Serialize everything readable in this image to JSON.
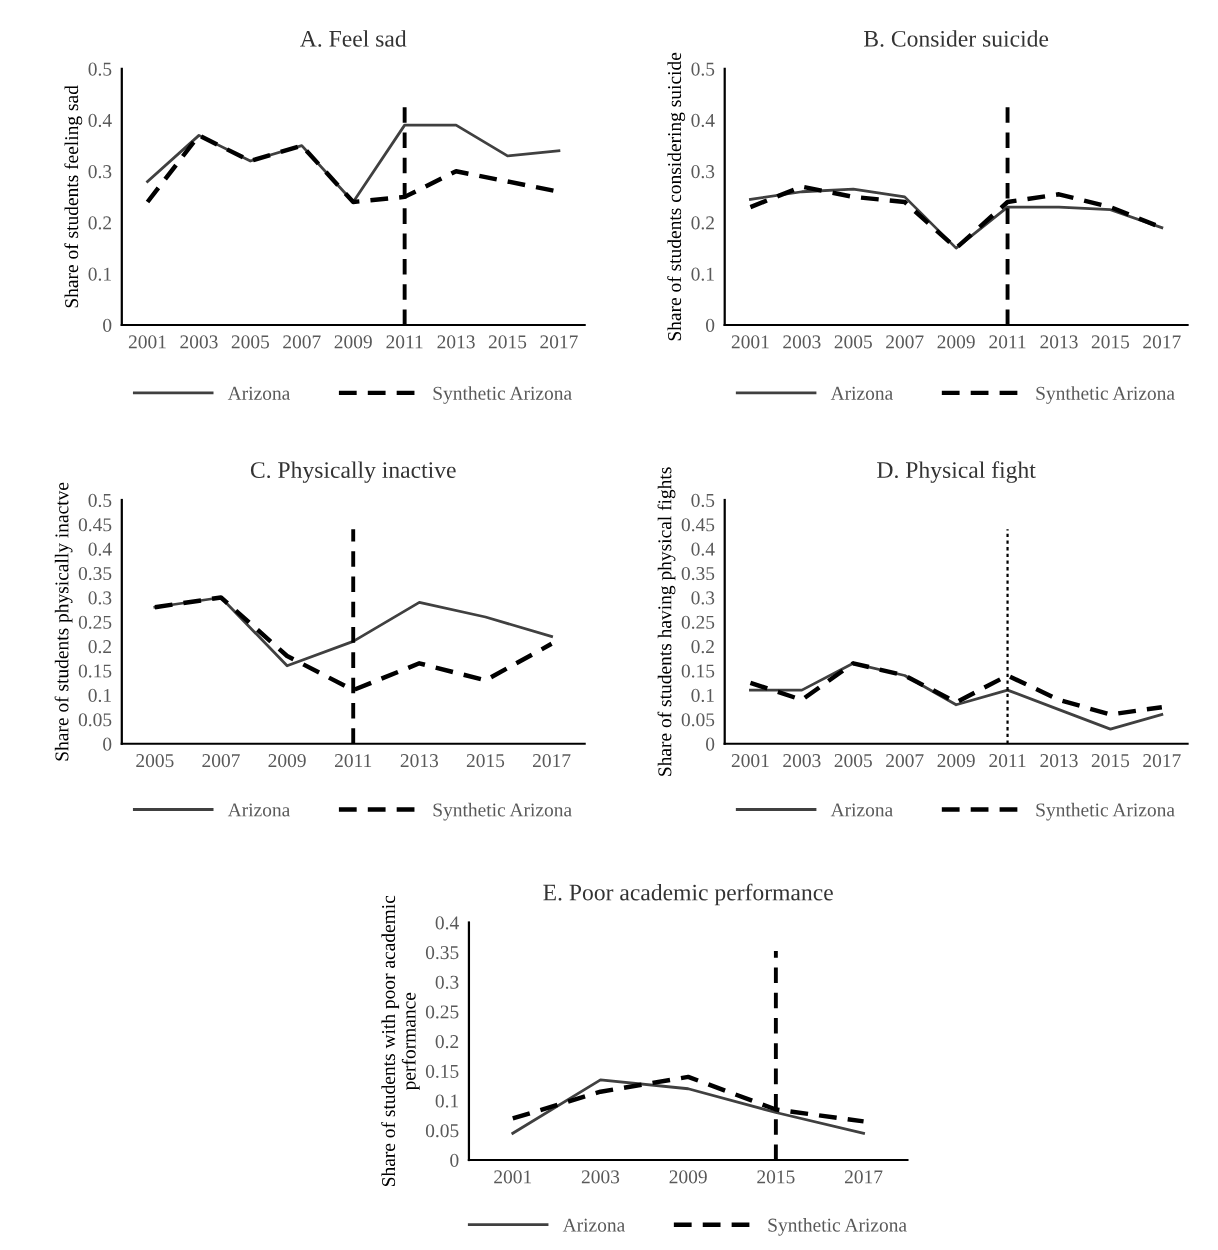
{
  "chart_data": [
    {
      "type": "line",
      "title": "A. Feel sad",
      "ylabel": "Share of students feeling sad",
      "categories": [
        "2001",
        "2003",
        "2005",
        "2007",
        "2009",
        "2011",
        "2013",
        "2015",
        "2017"
      ],
      "ylim": [
        0,
        0.5
      ],
      "yticks": [
        0,
        0.1,
        0.2,
        0.3,
        0.4,
        0.5
      ],
      "grid": false,
      "legend": "bottom",
      "marker": "none",
      "series": [
        {
          "name": "Arizona",
          "color": "#404040",
          "line_style": "solid",
          "values": [
            0.28,
            0.37,
            0.32,
            0.35,
            0.24,
            0.39,
            0.39,
            0.33,
            0.34
          ]
        },
        {
          "name": "Synthetic Arizona",
          "color": "#000000",
          "line_style": "dashed",
          "values": [
            0.24,
            0.37,
            0.32,
            0.35,
            0.24,
            0.25,
            0.3,
            0.28,
            0.26
          ]
        }
      ],
      "ref_lines": [
        {
          "axis": "x",
          "value": "2011",
          "color": "#000000",
          "line_style": "dashed"
        }
      ]
    },
    {
      "type": "line",
      "title": "B. Consider suicide",
      "ylabel": "Share of students considering suicide",
      "categories": [
        "2001",
        "2003",
        "2005",
        "2007",
        "2009",
        "2011",
        "2013",
        "2015",
        "2017"
      ],
      "ylim": [
        0,
        0.5
      ],
      "yticks": [
        0,
        0.1,
        0.2,
        0.3,
        0.4,
        0.5
      ],
      "grid": false,
      "legend": "bottom",
      "marker": "none",
      "series": [
        {
          "name": "Arizona",
          "color": "#404040",
          "line_style": "solid",
          "values": [
            0.245,
            0.26,
            0.265,
            0.25,
            0.15,
            0.23,
            0.23,
            0.225,
            0.19
          ]
        },
        {
          "name": "Synthetic Arizona",
          "color": "#000000",
          "line_style": "dashed",
          "values": [
            0.23,
            0.27,
            0.25,
            0.24,
            0.15,
            0.24,
            0.255,
            0.23,
            0.19
          ]
        }
      ],
      "ref_lines": [
        {
          "axis": "x",
          "value": "2011",
          "color": "#000000",
          "line_style": "dashed"
        }
      ]
    },
    {
      "type": "line",
      "title": "C. Physically inactive",
      "ylabel": "Share of students physically inactve",
      "categories": [
        "2005",
        "2007",
        "2009",
        "2011",
        "2013",
        "2015",
        "2017"
      ],
      "ylim": [
        0,
        0.5
      ],
      "yticks": [
        0,
        0.05,
        0.1,
        0.15,
        0.2,
        0.25,
        0.3,
        0.35,
        0.4,
        0.45,
        0.5
      ],
      "grid": false,
      "legend": "bottom",
      "marker": "none",
      "series": [
        {
          "name": "Arizona",
          "color": "#404040",
          "line_style": "solid",
          "values": [
            0.28,
            0.3,
            0.16,
            0.21,
            0.29,
            0.26,
            0.22
          ]
        },
        {
          "name": "Synthetic Arizona",
          "color": "#000000",
          "line_style": "dashed",
          "values": [
            0.28,
            0.3,
            0.18,
            0.11,
            0.165,
            0.13,
            0.205
          ]
        }
      ],
      "ref_lines": [
        {
          "axis": "x",
          "value": "2011",
          "color": "#000000",
          "line_style": "dashed"
        }
      ]
    },
    {
      "type": "line",
      "title": "D. Physical fight",
      "ylabel": "Share of students having physical fights",
      "categories": [
        "2001",
        "2003",
        "2005",
        "2007",
        "2009",
        "2011",
        "2013",
        "2015",
        "2017"
      ],
      "ylim": [
        0,
        0.5
      ],
      "yticks": [
        0,
        0.05,
        0.1,
        0.15,
        0.2,
        0.25,
        0.3,
        0.35,
        0.4,
        0.45,
        0.5
      ],
      "grid": false,
      "legend": "bottom",
      "marker": "none",
      "series": [
        {
          "name": "Arizona",
          "color": "#404040",
          "line_style": "solid",
          "values": [
            0.11,
            0.11,
            0.165,
            0.14,
            0.08,
            0.11,
            0.07,
            0.03,
            0.06
          ]
        },
        {
          "name": "Synthetic Arizona",
          "color": "#000000",
          "line_style": "dashed",
          "values": [
            0.125,
            0.09,
            0.165,
            0.14,
            0.085,
            0.14,
            0.09,
            0.06,
            0.075
          ]
        }
      ],
      "ref_lines": [
        {
          "axis": "x",
          "value": "2011",
          "color": "#000000",
          "line_style": "dotted"
        }
      ]
    },
    {
      "type": "line",
      "title": "E. Poor academic performance",
      "ylabel": "Share of students with poor academic\nperformance",
      "categories": [
        "2001",
        "2003",
        "2009",
        "2015",
        "2017"
      ],
      "ylim": [
        0,
        0.4
      ],
      "yticks": [
        0,
        0.05,
        0.1,
        0.15,
        0.2,
        0.25,
        0.3,
        0.35,
        0.4
      ],
      "grid": false,
      "legend": "bottom",
      "marker": "none",
      "series": [
        {
          "name": "Arizona",
          "color": "#404040",
          "line_style": "solid",
          "values": [
            0.045,
            0.135,
            0.12,
            0.08,
            0.045
          ]
        },
        {
          "name": "Synthetic Arizona",
          "color": "#000000",
          "line_style": "dashed",
          "values": [
            0.07,
            0.115,
            0.14,
            0.085,
            0.065
          ]
        }
      ],
      "ref_lines": [
        {
          "axis": "x",
          "value": "2015",
          "color": "#000000",
          "line_style": "dashed"
        }
      ]
    }
  ]
}
